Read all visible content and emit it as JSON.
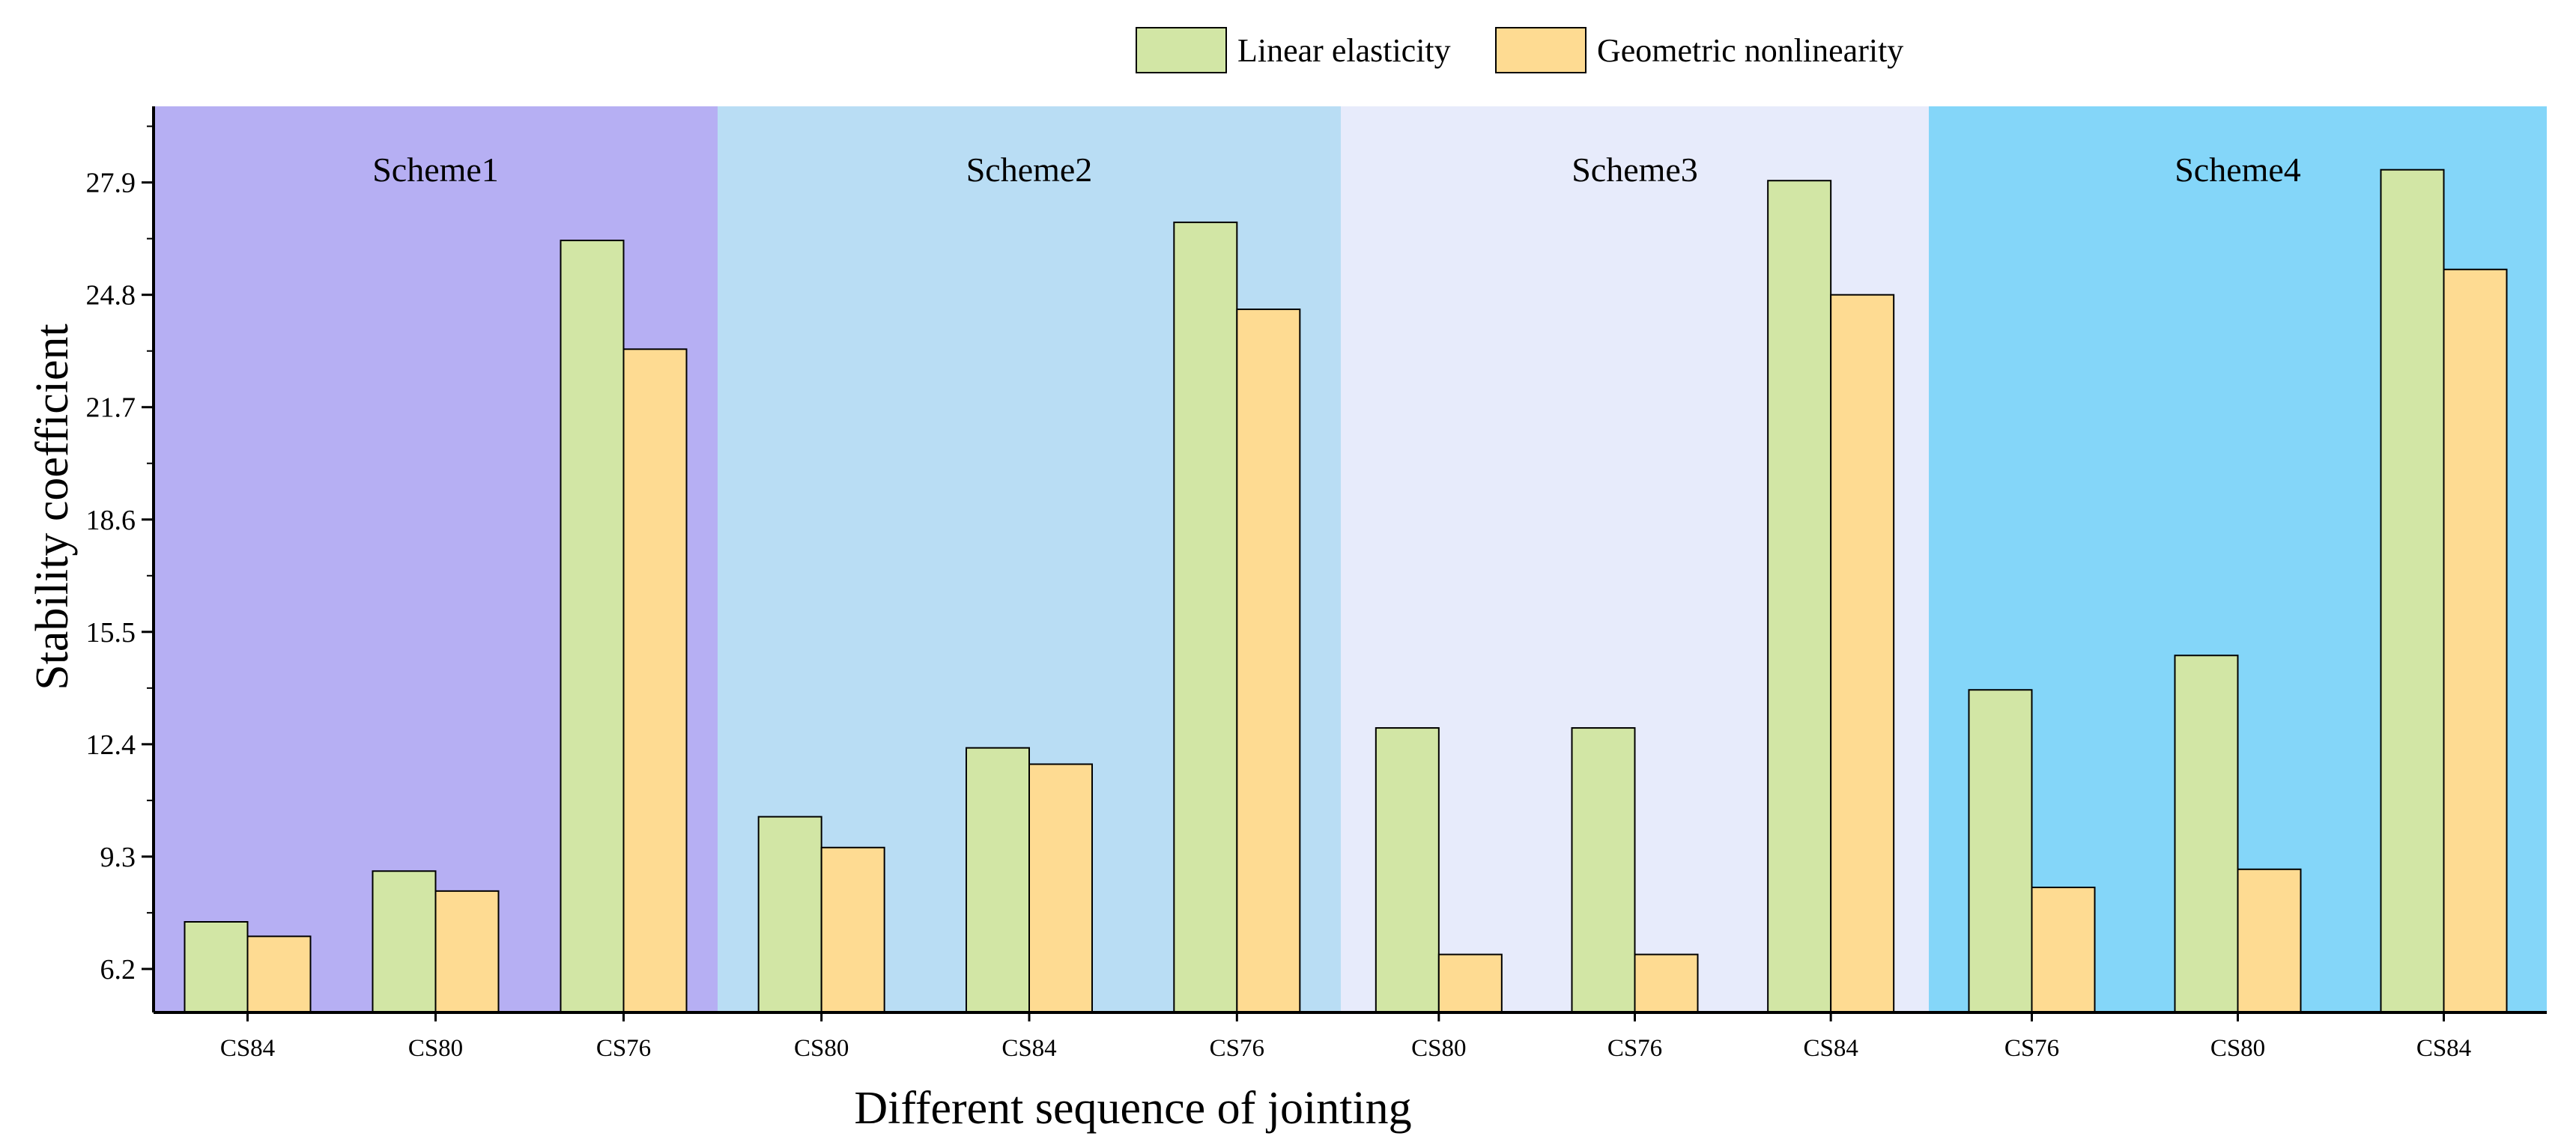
{
  "chart_data": {
    "type": "bar",
    "title": "",
    "xlabel": "Different sequence of jointing",
    "ylabel": "Stability coefficient",
    "ylim": [
      5,
      30
    ],
    "yticks": [
      "6.2",
      "9.3",
      "12.4",
      "15.5",
      "18.6",
      "21.7",
      "24.8",
      "27.9"
    ],
    "legend_position": "top",
    "series": [
      {
        "name": "Linear elasticity",
        "color": "#d2e6a5"
      },
      {
        "name": "Geometric nonlinearity",
        "color": "#fedb92"
      }
    ],
    "groups": [
      {
        "label": "Scheme1",
        "bg_color": "#b6aff3",
        "categories": [
          "CS84",
          "CS80",
          "CS76"
        ],
        "linear": [
          7.5,
          8.9,
          26.3
        ],
        "nonlinear": [
          7.1,
          8.35,
          23.3
        ]
      },
      {
        "label": "Scheme2",
        "bg_color": "#b9ddf4",
        "categories": [
          "CS80",
          "CS84",
          "CS76"
        ],
        "linear": [
          10.4,
          12.3,
          26.8
        ],
        "nonlinear": [
          9.55,
          11.85,
          24.4
        ]
      },
      {
        "label": "Scheme3",
        "bg_color": "#e7ebfb",
        "categories": [
          "CS80",
          "CS76",
          "CS84"
        ],
        "linear": [
          12.85,
          12.85,
          27.95
        ],
        "nonlinear": [
          6.6,
          6.6,
          24.8
        ]
      },
      {
        "label": "Scheme4",
        "bg_color": "#84d6f9",
        "categories": [
          "CS76",
          "CS80",
          "CS84"
        ],
        "linear": [
          13.9,
          14.85,
          28.25
        ],
        "nonlinear": [
          8.45,
          8.95,
          25.5
        ]
      }
    ]
  }
}
